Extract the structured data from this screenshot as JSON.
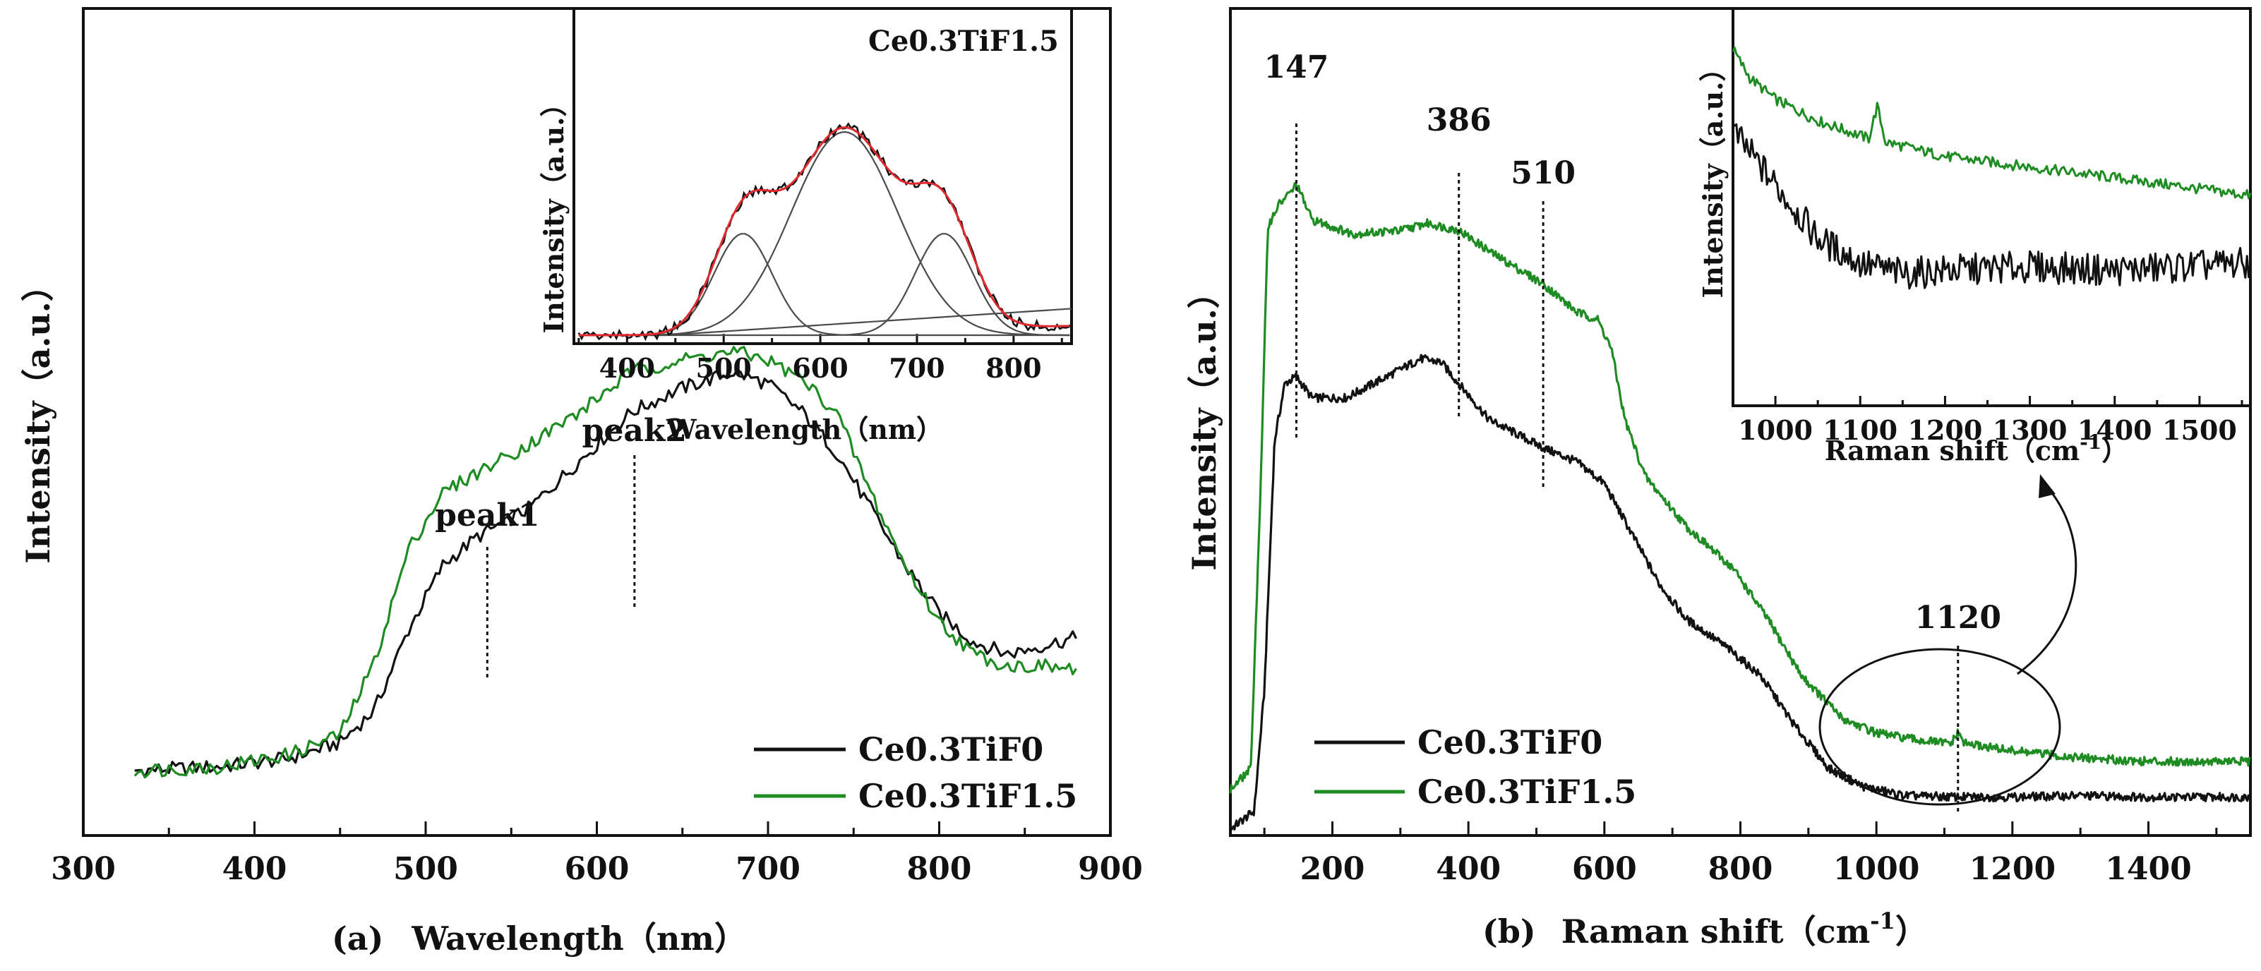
{
  "colors": {
    "black": "#111111",
    "green": "#1e8c22",
    "red": "#e0282d",
    "gray": "#4a4a4a"
  },
  "chart_data": [
    {
      "id": "a",
      "type": "line",
      "caption_prefix": "(a)",
      "xlabel": "Wavelength（nm）",
      "ylabel": "Intensity（a.u.）",
      "xlim": [
        300,
        900
      ],
      "ylim": [
        0,
        1
      ],
      "xticks": [
        "300",
        "400",
        "500",
        "600",
        "700",
        "800",
        "900"
      ],
      "legend": [
        "Ce0.3TiF0",
        "Ce0.3TiF1.5"
      ],
      "legend_position": "bottom-right",
      "series": [
        {
          "name": "Ce0.3TiF0",
          "color": "#111111",
          "points": [
            [
              330,
              0.055
            ],
            [
              380,
              0.06
            ],
            [
              420,
              0.07
            ],
            [
              450,
              0.09
            ],
            [
              470,
              0.13
            ],
            [
              490,
              0.23
            ],
            [
              510,
              0.31
            ],
            [
              530,
              0.345
            ],
            [
              560,
              0.38
            ],
            [
              590,
              0.44
            ],
            [
              620,
              0.5
            ],
            [
              650,
              0.53
            ],
            [
              680,
              0.55
            ],
            [
              700,
              0.535
            ],
            [
              720,
              0.5
            ],
            [
              740,
              0.45
            ],
            [
              760,
              0.38
            ],
            [
              780,
              0.31
            ],
            [
              800,
              0.25
            ],
            [
              820,
              0.215
            ],
            [
              840,
              0.2
            ],
            [
              860,
              0.21
            ],
            [
              880,
              0.22
            ]
          ]
        },
        {
          "name": "Ce0.3TiF1.5",
          "color": "#1e8c22",
          "points": [
            [
              330,
              0.055
            ],
            [
              380,
              0.06
            ],
            [
              420,
              0.075
            ],
            [
              450,
              0.1
            ],
            [
              470,
              0.19
            ],
            [
              490,
              0.33
            ],
            [
              510,
              0.4
            ],
            [
              530,
              0.425
            ],
            [
              560,
              0.46
            ],
            [
              590,
              0.5
            ],
            [
              620,
              0.55
            ],
            [
              650,
              0.565
            ],
            [
              680,
              0.575
            ],
            [
              700,
              0.565
            ],
            [
              720,
              0.54
            ],
            [
              740,
              0.5
            ],
            [
              760,
              0.4
            ],
            [
              780,
              0.31
            ],
            [
              800,
              0.24
            ],
            [
              820,
              0.2
            ],
            [
              840,
              0.185
            ],
            [
              860,
              0.185
            ],
            [
              880,
              0.18
            ]
          ]
        }
      ],
      "annotations": [
        {
          "text": "peak1",
          "x": 536
        },
        {
          "text": "peak2",
          "x": 622
        }
      ],
      "inset": {
        "title": "Ce0.3TiF1.5",
        "xlabel": "Wavelength（nm）",
        "ylabel": "Intensity（a.u.）",
        "xlim": [
          345,
          860
        ],
        "ylim": [
          0,
          1
        ],
        "xticks": [
          "400",
          "500",
          "600",
          "700",
          "800"
        ],
        "fit_peaks": [
          {
            "center": 520,
            "width": 30,
            "height": 0.4
          },
          {
            "center": 625,
            "width": 55,
            "height": 0.8
          },
          {
            "center": 728,
            "width": 30,
            "height": 0.4
          }
        ],
        "background": {
          "from": [
            440,
            0.0
          ],
          "to": [
            860,
            0.38
          ]
        }
      }
    },
    {
      "id": "b",
      "type": "line",
      "caption_prefix": "(b)",
      "xlabel": "Raman shift（cm",
      "xlabel_sup": "-1",
      "xlabel_end": "）",
      "ylabel": "Intensity（a.u.）",
      "xlim": [
        50,
        1550
      ],
      "ylim": [
        0,
        1
      ],
      "xticks": [
        "200",
        "400",
        "600",
        "800",
        "1000",
        "1200",
        "1400"
      ],
      "legend": [
        "Ce0.3TiF0",
        "Ce0.3TiF1.5"
      ],
      "legend_position": "bottom-left",
      "series": [
        {
          "name": "Ce0.3TiF0",
          "color": "#111111",
          "points": [
            [
              50,
              0.005
            ],
            [
              85,
              0.03
            ],
            [
              100,
              0.2
            ],
            [
              115,
              0.55
            ],
            [
              130,
              0.63
            ],
            [
              147,
              0.64
            ],
            [
              170,
              0.61
            ],
            [
              220,
              0.61
            ],
            [
              280,
              0.64
            ],
            [
              330,
              0.665
            ],
            [
              360,
              0.66
            ],
            [
              386,
              0.63
            ],
            [
              430,
              0.58
            ],
            [
              510,
              0.54
            ],
            [
              560,
              0.52
            ],
            [
              600,
              0.49
            ],
            [
              640,
              0.42
            ],
            [
              680,
              0.35
            ],
            [
              720,
              0.3
            ],
            [
              780,
              0.26
            ],
            [
              830,
              0.22
            ],
            [
              880,
              0.15
            ],
            [
              930,
              0.09
            ],
            [
              980,
              0.065
            ],
            [
              1040,
              0.052
            ],
            [
              1120,
              0.05
            ],
            [
              1200,
              0.05
            ],
            [
              1300,
              0.052
            ],
            [
              1400,
              0.05
            ],
            [
              1550,
              0.05
            ]
          ]
        },
        {
          "name": "Ce0.3TiF1.5",
          "color": "#1e8c22",
          "points": [
            [
              50,
              0.06
            ],
            [
              80,
              0.09
            ],
            [
              95,
              0.5
            ],
            [
              105,
              0.85
            ],
            [
              120,
              0.88
            ],
            [
              140,
              0.9
            ],
            [
              147,
              0.91
            ],
            [
              170,
              0.86
            ],
            [
              230,
              0.84
            ],
            [
              300,
              0.845
            ],
            [
              340,
              0.855
            ],
            [
              386,
              0.845
            ],
            [
              440,
              0.81
            ],
            [
              510,
              0.77
            ],
            [
              560,
              0.73
            ],
            [
              590,
              0.72
            ],
            [
              610,
              0.68
            ],
            [
              630,
              0.58
            ],
            [
              660,
              0.5
            ],
            [
              720,
              0.43
            ],
            [
              790,
              0.37
            ],
            [
              840,
              0.3
            ],
            [
              890,
              0.22
            ],
            [
              950,
              0.16
            ],
            [
              1000,
              0.14
            ],
            [
              1060,
              0.13
            ],
            [
              1110,
              0.125
            ],
            [
              1120,
              0.14
            ],
            [
              1130,
              0.125
            ],
            [
              1200,
              0.115
            ],
            [
              1300,
              0.105
            ],
            [
              1400,
              0.1
            ],
            [
              1550,
              0.1
            ]
          ]
        }
      ],
      "annotations": [
        {
          "text": "147",
          "x": 147
        },
        {
          "text": "386",
          "x": 386
        },
        {
          "text": "510",
          "x": 510
        },
        {
          "text": "1120",
          "x": 1120
        }
      ],
      "inset": {
        "xlabel": "Raman shift（cm",
        "xlabel_sup": "-1",
        "xlabel_end": "）",
        "ylabel": "Intensity（a.u.）",
        "xlim": [
          950,
          1560
        ],
        "ylim": [
          0,
          1
        ],
        "xticks": [
          "1000",
          "1100",
          "1200",
          "1300",
          "1400",
          "1500"
        ],
        "spike_x": 1120,
        "series": [
          {
            "name": "Ce0.3TiF1.5",
            "color": "#1e8c22",
            "points": [
              [
                950,
                0.98
              ],
              [
                970,
                0.9
              ],
              [
                1000,
                0.84
              ],
              [
                1050,
                0.78
              ],
              [
                1110,
                0.73
              ],
              [
                1120,
                0.82
              ],
              [
                1130,
                0.72
              ],
              [
                1200,
                0.68
              ],
              [
                1300,
                0.65
              ],
              [
                1400,
                0.62
              ],
              [
                1560,
                0.57
              ]
            ]
          },
          {
            "name": "Ce0.3TiF0",
            "color": "#111111",
            "points": [
              [
                950,
                0.75
              ],
              [
                1000,
                0.6
              ],
              [
                1050,
                0.45
              ],
              [
                1100,
                0.38
              ],
              [
                1150,
                0.35
              ],
              [
                1200,
                0.36
              ],
              [
                1300,
                0.37
              ],
              [
                1400,
                0.36
              ],
              [
                1560,
                0.38
              ]
            ]
          }
        ]
      }
    }
  ]
}
